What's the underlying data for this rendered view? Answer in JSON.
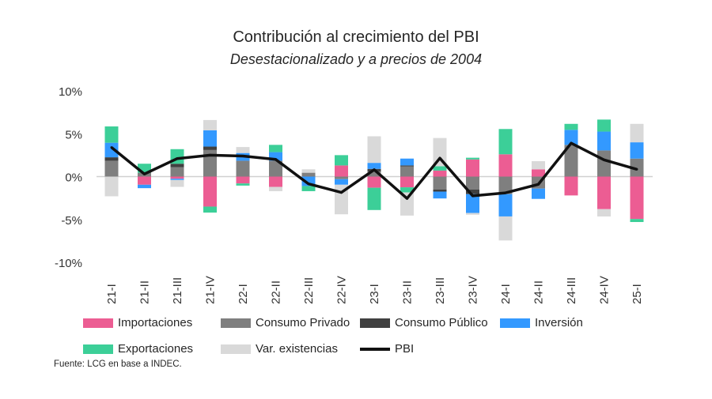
{
  "chart_data": {
    "type": "bar",
    "stacked": true,
    "title": "Contribución al crecimiento del PBI",
    "subtitle": "Desestacionalizado y a precios de 2004",
    "categories": [
      "21-I",
      "21-II",
      "21-III",
      "21-IV",
      "22-I",
      "22-II",
      "22-III",
      "22-IV",
      "23-I",
      "23-II",
      "23-III",
      "23-IV",
      "24-I",
      "24-II",
      "24-III",
      "24-IV",
      "25-I"
    ],
    "ylim": [
      -10,
      10
    ],
    "yticks": [
      10,
      5,
      0,
      -5,
      -10
    ],
    "ytick_labels": [
      "10%",
      "5%",
      "0%",
      "-5%",
      "-10%"
    ],
    "grid": false,
    "legend_position": "bottom",
    "series": [
      {
        "name": "Importaciones",
        "color": "#EC5D93",
        "values": [
          0,
          -0.95,
          -0.25,
          -3.5,
          -0.8,
          -1.2,
          0,
          1.3,
          -1.3,
          -1.25,
          0.7,
          2.0,
          2.6,
          0.85,
          -2.2,
          -3.8,
          -4.95
        ]
      },
      {
        "name": "Consumo Privado",
        "color": "#7F7F7F",
        "values": [
          1.85,
          0.45,
          1.1,
          3.1,
          1.85,
          1.85,
          0.45,
          -0.3,
          0.6,
          1.2,
          -1.5,
          -1.5,
          -2.05,
          -1.4,
          3.7,
          3.05,
          2.1
        ]
      },
      {
        "name": "Consumo Público",
        "color": "#404040",
        "values": [
          0.4,
          0,
          0.4,
          0.4,
          0,
          0,
          0,
          0,
          0.3,
          0.1,
          -0.25,
          -0.55,
          0,
          0,
          0,
          0,
          0
        ]
      },
      {
        "name": "Inversión",
        "color": "#3399FF",
        "values": [
          1.7,
          -0.4,
          -0.15,
          1.9,
          0.9,
          1.0,
          -1.1,
          -0.65,
          0.7,
          0.8,
          -0.8,
          -2.2,
          -2.6,
          -1.2,
          1.75,
          2.2,
          1.9
        ]
      },
      {
        "name": "Exportaciones",
        "color": "#3CCF98",
        "values": [
          1.9,
          1.05,
          1.7,
          -0.7,
          -0.25,
          0.85,
          -0.6,
          1.2,
          -2.6,
          -0.6,
          0.5,
          0.2,
          2.95,
          0,
          0.7,
          1.4,
          -0.35
        ]
      },
      {
        "name": "Var. existencias",
        "color": "#D9D9D9",
        "values": [
          -2.3,
          0,
          -0.8,
          1.2,
          0.7,
          -0.5,
          0.4,
          -3.45,
          3.1,
          -2.7,
          3.3,
          -0.2,
          -2.8,
          0.95,
          0,
          -0.85,
          2.15
        ]
      }
    ],
    "line": {
      "name": "PBI",
      "color": "#111111",
      "values": [
        3.4,
        0.3,
        2.1,
        2.5,
        2.4,
        2.0,
        -0.85,
        -1.85,
        0.8,
        -2.55,
        2.15,
        -2.25,
        -1.9,
        -0.9,
        3.9,
        1.95,
        0.85
      ]
    }
  },
  "source": "Fuente: LCG en base a INDEC."
}
